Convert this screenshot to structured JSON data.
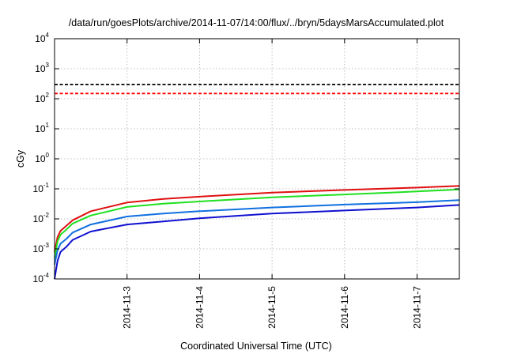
{
  "chart_data": {
    "type": "line",
    "title": "/data/run/goesPlots/archive/2014-11-07/14:00/flux/../bryn/5daysMarsAccumulated.plot",
    "xlabel": "Coordinated Universal Time (UTC)",
    "ylabel": "cGy",
    "yscale": "log",
    "ylim": [
      0.0001,
      10000
    ],
    "xlim": [
      "2014-11-02T00:00",
      "2014-11-07T14:00"
    ],
    "grid": true,
    "y_ticks": [
      {
        "base": "10",
        "exp": "-4",
        "value": 0.0001
      },
      {
        "base": "10",
        "exp": "-3",
        "value": 0.001
      },
      {
        "base": "10",
        "exp": "-2",
        "value": 0.01
      },
      {
        "base": "10",
        "exp": "-1",
        "value": 0.1
      },
      {
        "base": "10",
        "exp": "0",
        "value": 1
      },
      {
        "base": "10",
        "exp": "1",
        "value": 10
      },
      {
        "base": "10",
        "exp": "2",
        "value": 100
      },
      {
        "base": "10",
        "exp": "3",
        "value": 1000
      },
      {
        "base": "10",
        "exp": "4",
        "value": 10000
      }
    ],
    "x_ticks": [
      {
        "label": "2014-11-3",
        "value": "2014-11-03T00:00"
      },
      {
        "label": "2014-11-4",
        "value": "2014-11-04T00:00"
      },
      {
        "label": "2014-11-5",
        "value": "2014-11-05T00:00"
      },
      {
        "label": "2014-11-6",
        "value": "2014-11-06T00:00"
      },
      {
        "label": "2014-11-7",
        "value": "2014-11-07T00:00"
      }
    ],
    "reference_lines": [
      {
        "value": 300,
        "color": "#000000",
        "style": "dashed"
      },
      {
        "value": 150,
        "color": "#ff0000",
        "style": "dashed"
      }
    ],
    "series": [
      {
        "color": "#e01010",
        "x": [
          "2014-11-02T00:00",
          "2014-11-02T01:00",
          "2014-11-02T02:00",
          "2014-11-02T04:00",
          "2014-11-02T06:00",
          "2014-11-02T12:00",
          "2014-11-03T00:00",
          "2014-11-03T12:00",
          "2014-11-04T00:00",
          "2014-11-05T00:00",
          "2014-11-06T00:00",
          "2014-11-07T00:00",
          "2014-11-07T14:00"
        ],
        "values": [
          0.0008,
          0.0025,
          0.004,
          0.006,
          0.009,
          0.018,
          0.035,
          0.046,
          0.055,
          0.075,
          0.092,
          0.11,
          0.125
        ]
      },
      {
        "color": "#20e020",
        "x": [
          "2014-11-02T00:00",
          "2014-11-02T01:00",
          "2014-11-02T02:00",
          "2014-11-02T04:00",
          "2014-11-02T06:00",
          "2014-11-02T12:00",
          "2014-11-03T00:00",
          "2014-11-03T12:00",
          "2014-11-04T00:00",
          "2014-11-05T00:00",
          "2014-11-06T00:00",
          "2014-11-07T00:00",
          "2014-11-07T14:00"
        ],
        "values": [
          0.0005,
          0.0018,
          0.003,
          0.0045,
          0.007,
          0.013,
          0.025,
          0.032,
          0.038,
          0.052,
          0.065,
          0.082,
          0.095
        ]
      },
      {
        "color": "#1070e0",
        "x": [
          "2014-11-02T00:00",
          "2014-11-02T01:00",
          "2014-11-02T02:00",
          "2014-11-02T04:00",
          "2014-11-02T06:00",
          "2014-11-02T12:00",
          "2014-11-03T00:00",
          "2014-11-03T12:00",
          "2014-11-04T00:00",
          "2014-11-05T00:00",
          "2014-11-06T00:00",
          "2014-11-07T00:00",
          "2014-11-07T14:00"
        ],
        "values": [
          0.0003,
          0.0009,
          0.0015,
          0.0022,
          0.0035,
          0.0065,
          0.012,
          0.015,
          0.018,
          0.024,
          0.03,
          0.036,
          0.042
        ]
      },
      {
        "color": "#1010d0",
        "x": [
          "2014-11-02T00:00",
          "2014-11-02T01:00",
          "2014-11-02T02:00",
          "2014-11-02T04:00",
          "2014-11-02T06:00",
          "2014-11-02T12:00",
          "2014-11-03T00:00",
          "2014-11-03T12:00",
          "2014-11-04T00:00",
          "2014-11-05T00:00",
          "2014-11-06T00:00",
          "2014-11-07T00:00",
          "2014-11-07T14:00"
        ],
        "values": [
          0.0001,
          0.0004,
          0.0008,
          0.0012,
          0.002,
          0.0038,
          0.0065,
          0.0082,
          0.0105,
          0.015,
          0.019,
          0.024,
          0.029
        ]
      }
    ]
  }
}
